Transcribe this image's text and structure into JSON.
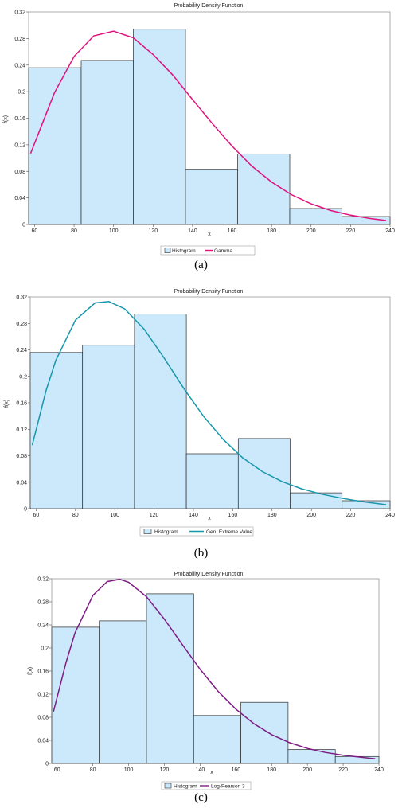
{
  "chart_data": [
    {
      "type": "bar",
      "title": "Probability Density Function",
      "xlabel": "x",
      "ylabel": "f(x)",
      "xlim": [
        57,
        240
      ],
      "ylim": [
        0,
        0.32
      ],
      "x_ticks": [
        "60",
        "80",
        "100",
        "120",
        "140",
        "160",
        "180",
        "200",
        "220",
        "240"
      ],
      "y_ticks": [
        "0",
        "0.04",
        "0.08",
        "0.12",
        "0.16",
        "0.2",
        "0.24",
        "0.28",
        "0.32"
      ],
      "bin_edges": [
        57,
        83.6,
        110,
        136.4,
        162.8,
        189.2,
        215.6,
        240
      ],
      "values": [
        0.236,
        0.247,
        0.294,
        0.083,
        0.106,
        0.024,
        0.012
      ],
      "curve": {
        "x": [
          58,
          70,
          80,
          90,
          100,
          110,
          120,
          130,
          140,
          150,
          160,
          170,
          180,
          190,
          200,
          210,
          220,
          230,
          238
        ],
        "y": [
          0.107,
          0.198,
          0.253,
          0.284,
          0.291,
          0.281,
          0.256,
          0.225,
          0.188,
          0.152,
          0.118,
          0.088,
          0.064,
          0.045,
          0.031,
          0.021,
          0.014,
          0.009,
          0.006
        ]
      },
      "legend": [
        "Histogram",
        "Gamma"
      ],
      "legend_position": "bottom",
      "colors": {
        "bar_fill": "#cce8fb",
        "bar_edge": "#2b2b2b",
        "curve": "#e0117f"
      },
      "caption": "(a)"
    },
    {
      "type": "bar",
      "title": "Probability Density Function",
      "xlabel": "x",
      "ylabel": "f(x)",
      "xlim": [
        57,
        240
      ],
      "ylim": [
        0,
        0.32
      ],
      "x_ticks": [
        "60",
        "80",
        "100",
        "120",
        "140",
        "160",
        "180",
        "200",
        "220",
        "240"
      ],
      "y_ticks": [
        "0",
        "0.04",
        "0.08",
        "0.12",
        "0.16",
        "0.2",
        "0.24",
        "0.28",
        "0.32"
      ],
      "bin_edges": [
        57,
        83.6,
        110,
        136.4,
        162.8,
        189.2,
        215.6,
        240
      ],
      "values": [
        0.236,
        0.247,
        0.294,
        0.083,
        0.106,
        0.024,
        0.012
      ],
      "curve": {
        "x": [
          58,
          65,
          70,
          80,
          90,
          97,
          105,
          115,
          125,
          135,
          145,
          155,
          165,
          175,
          185,
          195,
          205,
          215,
          225,
          238
        ],
        "y": [
          0.096,
          0.178,
          0.224,
          0.285,
          0.311,
          0.313,
          0.302,
          0.271,
          0.228,
          0.182,
          0.14,
          0.105,
          0.077,
          0.056,
          0.041,
          0.03,
          0.022,
          0.016,
          0.011,
          0.006
        ]
      },
      "legend": [
        "Histogram",
        "Gen. Extreme Value"
      ],
      "legend_position": "bottom",
      "colors": {
        "bar_fill": "#cce8fb",
        "bar_edge": "#2b2b2b",
        "curve": "#1697ac"
      },
      "caption": "(b)"
    },
    {
      "type": "bar",
      "title": "Probability Density Function",
      "xlabel": "x",
      "ylabel": "f(x)",
      "xlim": [
        57,
        240
      ],
      "ylim": [
        0,
        0.32
      ],
      "x_ticks": [
        "60",
        "80",
        "100",
        "120",
        "140",
        "160",
        "180",
        "200",
        "220",
        "240"
      ],
      "y_ticks": [
        "0",
        "0.04",
        "0.08",
        "0.12",
        "0.16",
        "0.2",
        "0.24",
        "0.28",
        "0.32"
      ],
      "bin_edges": [
        57,
        83.6,
        110,
        136.4,
        162.8,
        189.2,
        215.6,
        240
      ],
      "values": [
        0.236,
        0.247,
        0.294,
        0.083,
        0.106,
        0.024,
        0.012
      ],
      "curve": {
        "x": [
          58,
          65,
          70,
          80,
          88,
          95,
          100,
          110,
          120,
          130,
          140,
          150,
          160,
          170,
          180,
          190,
          200,
          210,
          220,
          238
        ],
        "y": [
          0.09,
          0.175,
          0.226,
          0.291,
          0.315,
          0.319,
          0.314,
          0.289,
          0.25,
          0.206,
          0.163,
          0.125,
          0.094,
          0.069,
          0.05,
          0.036,
          0.026,
          0.019,
          0.014,
          0.008
        ]
      },
      "legend": [
        "Histogram",
        "Log-Pearson 3"
      ],
      "legend_position": "bottom",
      "colors": {
        "bar_fill": "#cce8fb",
        "bar_edge": "#2b2b2b",
        "curve": "#7d1d83"
      },
      "caption": "(c)"
    }
  ]
}
